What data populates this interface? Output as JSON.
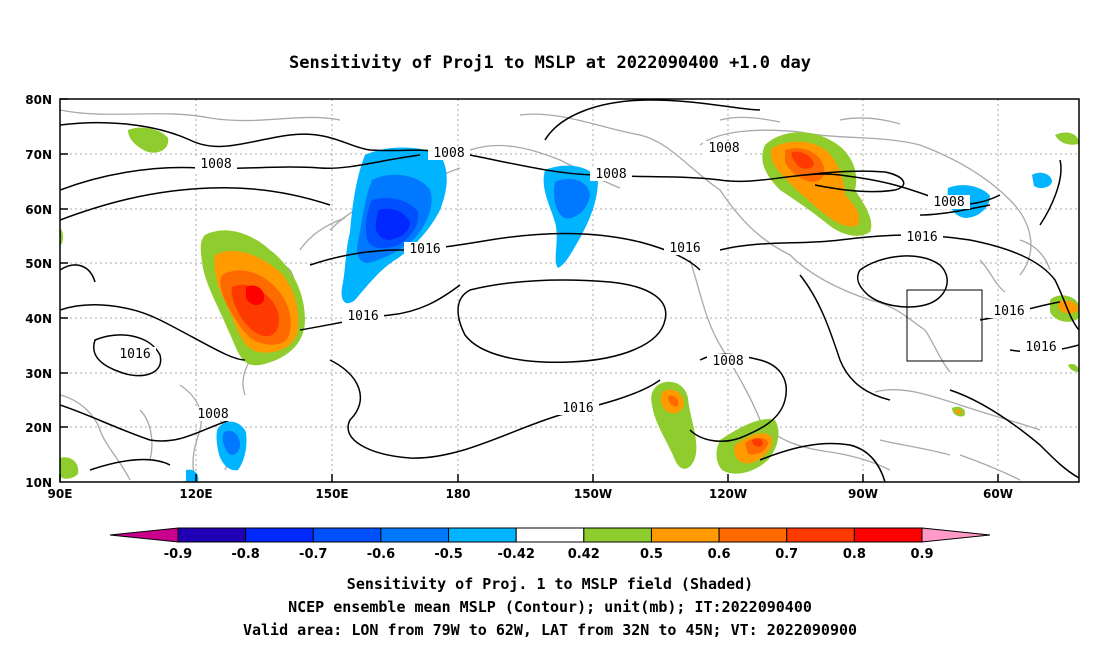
{
  "title": "Sensitivity of Proj1 to MSLP at 2022090400 +1.0 day",
  "map": {
    "lon_labels": [
      "90E",
      "120E",
      "150E",
      "180",
      "150W",
      "120W",
      "90W",
      "60W"
    ],
    "lat_labels": [
      "80N",
      "70N",
      "60N",
      "50N",
      "40N",
      "30N",
      "20N",
      "10N"
    ],
    "contour_labels": [
      "1008",
      "1008",
      "1008",
      "1008",
      "1016",
      "1016",
      "1016",
      "1016",
      "1016",
      "1016",
      "1008",
      "1016",
      "1008"
    ],
    "valid_box": {
      "lon_from": "79W",
      "lon_to": "62W",
      "lat_from": "32N",
      "lat_to": "45N"
    }
  },
  "colorbar": {
    "labels": [
      "-0.9",
      "-0.8",
      "-0.7",
      "-0.6",
      "-0.5",
      "-0.42",
      "0.42",
      "0.5",
      "0.6",
      "0.7",
      "0.8",
      "0.9"
    ],
    "colors": [
      "#1f00b4",
      "#0028ff",
      "#0050ff",
      "#0078ff",
      "#00b4ff",
      "#ffffff",
      "#8fcc2e",
      "#ff9a00",
      "#ff6a00",
      "#ff3a00",
      "#ff0000"
    ],
    "low_arrow_color": "#c8008c",
    "high_arrow_color": "#ff9ac8"
  },
  "caption": {
    "line1": "Sensitivity of Proj. 1 to MSLP field (Shaded)",
    "line2": "NCEP ensemble mean MSLP (Contour); unit(mb); IT:2022090400",
    "line3": "Valid area: LON from 79W to 62W, LAT from 32N to 45N; VT: 2022090900"
  }
}
